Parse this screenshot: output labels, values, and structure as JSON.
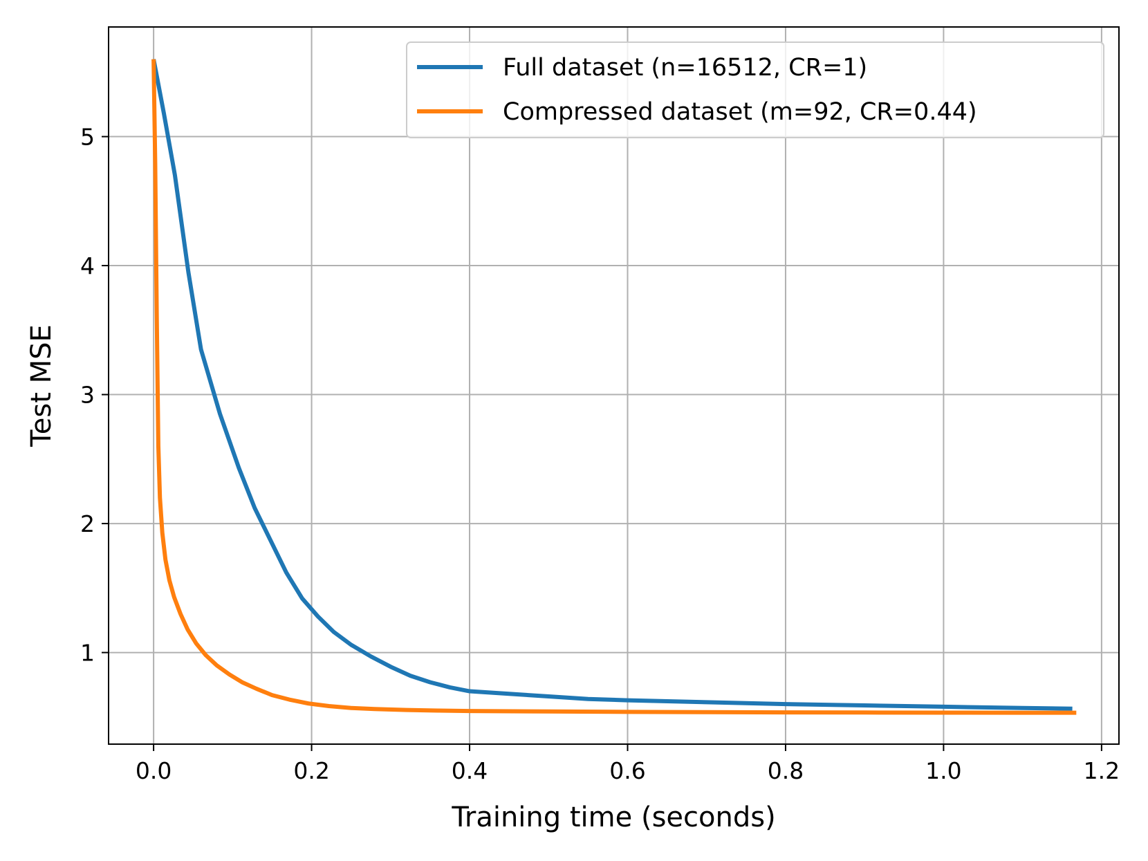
{
  "chart_data": {
    "type": "line",
    "xlabel": "Training time (seconds)",
    "ylabel": "Test MSE",
    "xlim": [
      -0.057,
      1.222
    ],
    "ylim": [
      0.29,
      5.85
    ],
    "x_ticks": [
      0.0,
      0.2,
      0.4,
      0.6,
      0.8,
      1.0,
      1.2
    ],
    "x_tick_labels": [
      "0.0",
      "0.2",
      "0.4",
      "0.6",
      "0.8",
      "1.0",
      "1.2"
    ],
    "y_ticks": [
      1,
      2,
      3,
      4,
      5
    ],
    "y_tick_labels": [
      "1",
      "2",
      "3",
      "4",
      "5"
    ],
    "grid": true,
    "legend_position": "top-right",
    "series": [
      {
        "name": "Full dataset (n=16512, CR=1)",
        "color": "#1f77b4",
        "x": [
          0.0,
          0.013,
          0.027,
          0.044,
          0.06,
          0.084,
          0.108,
          0.128,
          0.148,
          0.168,
          0.188,
          0.208,
          0.228,
          0.25,
          0.275,
          0.3,
          0.325,
          0.35,
          0.375,
          0.4,
          0.45,
          0.5,
          0.55,
          0.6,
          0.7,
          0.8,
          0.9,
          1.0,
          1.1,
          1.163
        ],
        "y": [
          5.6,
          5.18,
          4.7,
          3.95,
          3.35,
          2.85,
          2.43,
          2.12,
          1.87,
          1.62,
          1.42,
          1.28,
          1.16,
          1.06,
          0.97,
          0.89,
          0.82,
          0.77,
          0.73,
          0.7,
          0.68,
          0.66,
          0.64,
          0.63,
          0.615,
          0.6,
          0.59,
          0.58,
          0.57,
          0.565
        ]
      },
      {
        "name": "Compressed dataset (m=92, CR=0.44)",
        "color": "#ff7f0e",
        "x": [
          0.0,
          0.002,
          0.004,
          0.006,
          0.008,
          0.011,
          0.015,
          0.02,
          0.026,
          0.034,
          0.043,
          0.054,
          0.066,
          0.08,
          0.096,
          0.112,
          0.13,
          0.15,
          0.172,
          0.196,
          0.222,
          0.25,
          0.28,
          0.32,
          0.36,
          0.4,
          0.5,
          0.6,
          0.7,
          0.8,
          0.9,
          1.0,
          1.1,
          1.168
        ],
        "y": [
          5.6,
          4.8,
          3.6,
          2.6,
          2.2,
          1.93,
          1.72,
          1.56,
          1.43,
          1.3,
          1.18,
          1.07,
          0.98,
          0.9,
          0.83,
          0.77,
          0.72,
          0.67,
          0.635,
          0.605,
          0.585,
          0.57,
          0.562,
          0.555,
          0.55,
          0.547,
          0.543,
          0.54,
          0.538,
          0.536,
          0.535,
          0.534,
          0.533,
          0.533
        ]
      }
    ]
  }
}
